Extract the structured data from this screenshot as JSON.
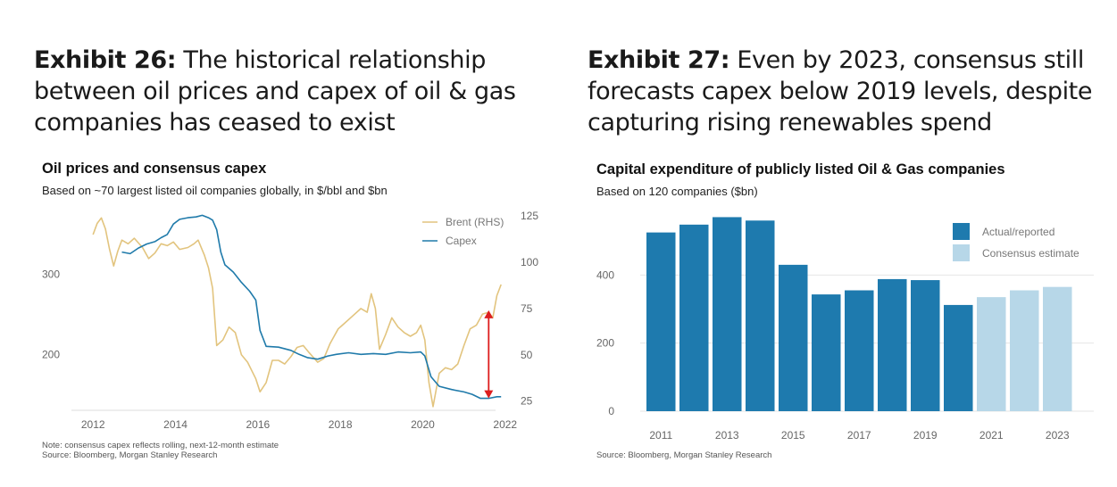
{
  "exhibits": {
    "left": {
      "label": "Exhibit 26:",
      "heading": "The historical relationship between oil prices and capex of oil & gas companies has ceased to exist",
      "chart_title": "Oil prices and consensus capex",
      "chart_subtitle": "Based on ~70 largest listed oil companies globally, in $/bbl and $bn",
      "note": "Note: consensus capex reflects rolling, next-12-month estimate",
      "source": "Source: Bloomberg, Morgan Stanley Research"
    },
    "right": {
      "label": "Exhibit 27:",
      "heading": "Even by 2023, consensus still forecasts capex below 2019 levels, despite capturing rising renewables spend",
      "chart_title": "Capital expenditure of publicly listed Oil & Gas companies",
      "chart_subtitle": "Based on 120 companies ($bn)",
      "source": "Source: Bloomberg, Morgan Stanley Research"
    }
  },
  "chart_data": [
    {
      "type": "line",
      "title": "Oil prices and consensus capex",
      "subtitle": "Based on ~70 largest listed oil companies globally, in $/bbl and $bn",
      "x_ticks": [
        "2012",
        "2014",
        "2016",
        "2018",
        "2020",
        "2022"
      ],
      "x_range": [
        2011.8,
        2022.2
      ],
      "y_left": {
        "ticks": [
          "200",
          "300"
        ],
        "range": [
          130,
          380
        ]
      },
      "y_right": {
        "ticks": [
          "25",
          "50",
          "75",
          "100",
          "125"
        ],
        "range": [
          20,
          128
        ]
      },
      "legend": [
        "Brent (RHS)",
        "Capex"
      ],
      "legend_position": "top-right",
      "colors": {
        "brent": "#E2C47E",
        "capex": "#1F7AAA",
        "arrow": "#DD1E1E"
      },
      "series": [
        {
          "name": "Capex",
          "axis": "left",
          "points": [
            [
              2012.7,
              328
            ],
            [
              2012.9,
              326
            ],
            [
              2013.1,
              333
            ],
            [
              2013.3,
              338
            ],
            [
              2013.5,
              341
            ],
            [
              2013.65,
              346
            ],
            [
              2013.8,
              350
            ],
            [
              2013.95,
              363
            ],
            [
              2014.1,
              369
            ],
            [
              2014.3,
              371
            ],
            [
              2014.5,
              372
            ],
            [
              2014.65,
              374
            ],
            [
              2014.8,
              371
            ],
            [
              2014.9,
              368
            ],
            [
              2015.0,
              356
            ],
            [
              2015.1,
              328
            ],
            [
              2015.2,
              312
            ],
            [
              2015.4,
              303
            ],
            [
              2015.6,
              290
            ],
            [
              2015.8,
              279
            ],
            [
              2015.95,
              268
            ],
            [
              2016.05,
              230
            ],
            [
              2016.2,
              210
            ],
            [
              2016.5,
              209
            ],
            [
              2016.8,
              205
            ],
            [
              2017.0,
              200
            ],
            [
              2017.2,
              196
            ],
            [
              2017.45,
              194
            ],
            [
              2017.7,
              198
            ],
            [
              2017.9,
              200
            ],
            [
              2018.2,
              202
            ],
            [
              2018.5,
              200
            ],
            [
              2018.8,
              201
            ],
            [
              2019.1,
              200
            ],
            [
              2019.4,
              203
            ],
            [
              2019.7,
              202
            ],
            [
              2019.95,
              203
            ],
            [
              2020.05,
              198
            ],
            [
              2020.2,
              172
            ],
            [
              2020.4,
              160
            ],
            [
              2020.7,
              156
            ],
            [
              2021.0,
              153
            ],
            [
              2021.2,
              150
            ],
            [
              2021.4,
              145
            ],
            [
              2021.6,
              145
            ],
            [
              2021.8,
              147
            ],
            [
              2021.9,
              147
            ]
          ]
        },
        {
          "name": "Brent (RHS)",
          "axis": "right",
          "points": [
            [
              2012.0,
              115
            ],
            [
              2012.1,
              121
            ],
            [
              2012.2,
              124
            ],
            [
              2012.3,
              118
            ],
            [
              2012.4,
              107
            ],
            [
              2012.5,
              98
            ],
            [
              2012.6,
              106
            ],
            [
              2012.7,
              112
            ],
            [
              2012.85,
              110
            ],
            [
              2013.0,
              113
            ],
            [
              2013.2,
              108
            ],
            [
              2013.35,
              102
            ],
            [
              2013.5,
              105
            ],
            [
              2013.65,
              110
            ],
            [
              2013.8,
              109
            ],
            [
              2013.95,
              111
            ],
            [
              2014.1,
              107
            ],
            [
              2014.3,
              108
            ],
            [
              2014.45,
              110
            ],
            [
              2014.55,
              112
            ],
            [
              2014.7,
              104
            ],
            [
              2014.8,
              97
            ],
            [
              2014.9,
              86
            ],
            [
              2015.0,
              55
            ],
            [
              2015.15,
              58
            ],
            [
              2015.3,
              65
            ],
            [
              2015.45,
              62
            ],
            [
              2015.6,
              50
            ],
            [
              2015.75,
              46
            ],
            [
              2015.95,
              37
            ],
            [
              2016.05,
              30
            ],
            [
              2016.2,
              35
            ],
            [
              2016.35,
              47
            ],
            [
              2016.5,
              47
            ],
            [
              2016.65,
              45
            ],
            [
              2016.8,
              49
            ],
            [
              2016.95,
              54
            ],
            [
              2017.1,
              55
            ],
            [
              2017.25,
              51
            ],
            [
              2017.45,
              46
            ],
            [
              2017.6,
              48
            ],
            [
              2017.75,
              56
            ],
            [
              2017.95,
              64
            ],
            [
              2018.1,
              67
            ],
            [
              2018.3,
              71
            ],
            [
              2018.5,
              75
            ],
            [
              2018.65,
              73
            ],
            [
              2018.75,
              83
            ],
            [
              2018.85,
              75
            ],
            [
              2018.95,
              53
            ],
            [
              2019.1,
              61
            ],
            [
              2019.25,
              70
            ],
            [
              2019.4,
              65
            ],
            [
              2019.55,
              62
            ],
            [
              2019.7,
              60
            ],
            [
              2019.85,
              62
            ],
            [
              2019.95,
              66
            ],
            [
              2020.05,
              58
            ],
            [
              2020.15,
              35
            ],
            [
              2020.25,
              22
            ],
            [
              2020.4,
              40
            ],
            [
              2020.55,
              43
            ],
            [
              2020.7,
              42
            ],
            [
              2020.85,
              45
            ],
            [
              2021.0,
              55
            ],
            [
              2021.15,
              64
            ],
            [
              2021.3,
              66
            ],
            [
              2021.45,
              72
            ],
            [
              2021.6,
              73
            ],
            [
              2021.7,
              70
            ],
            [
              2021.8,
              82
            ],
            [
              2021.9,
              88
            ]
          ]
        }
      ],
      "annotations": [
        {
          "type": "double-arrow",
          "x": 2021.6,
          "from": 146,
          "to": 254
        }
      ]
    },
    {
      "type": "bar",
      "title": "Capital expenditure of publicly listed Oil & Gas companies",
      "subtitle": "Based on 120 companies ($bn)",
      "categories": [
        "2011",
        "2012",
        "2013",
        "2014",
        "2015",
        "2016",
        "2017",
        "2018",
        "2019",
        "2020",
        "2021",
        "2022",
        "2023"
      ],
      "x_ticks": [
        "2011",
        "2013",
        "2015",
        "2017",
        "2019",
        "2021",
        "2023"
      ],
      "ylim": [
        0,
        600
      ],
      "y_ticks": [
        "0",
        "200",
        "400"
      ],
      "grid": true,
      "legend": [
        "Actual/reported",
        "Consensus estimate"
      ],
      "legend_position": "top-right",
      "colors": {
        "actual": "#1E7AAE",
        "estimate": "#B7D7E8"
      },
      "series": [
        {
          "name": "Actual/reported",
          "values": [
            525,
            548,
            570,
            560,
            430,
            343,
            355,
            388,
            385,
            312,
            null,
            null,
            null
          ]
        },
        {
          "name": "Consensus estimate",
          "values": [
            null,
            null,
            null,
            null,
            null,
            null,
            null,
            null,
            null,
            null,
            335,
            355,
            365
          ]
        }
      ]
    }
  ]
}
